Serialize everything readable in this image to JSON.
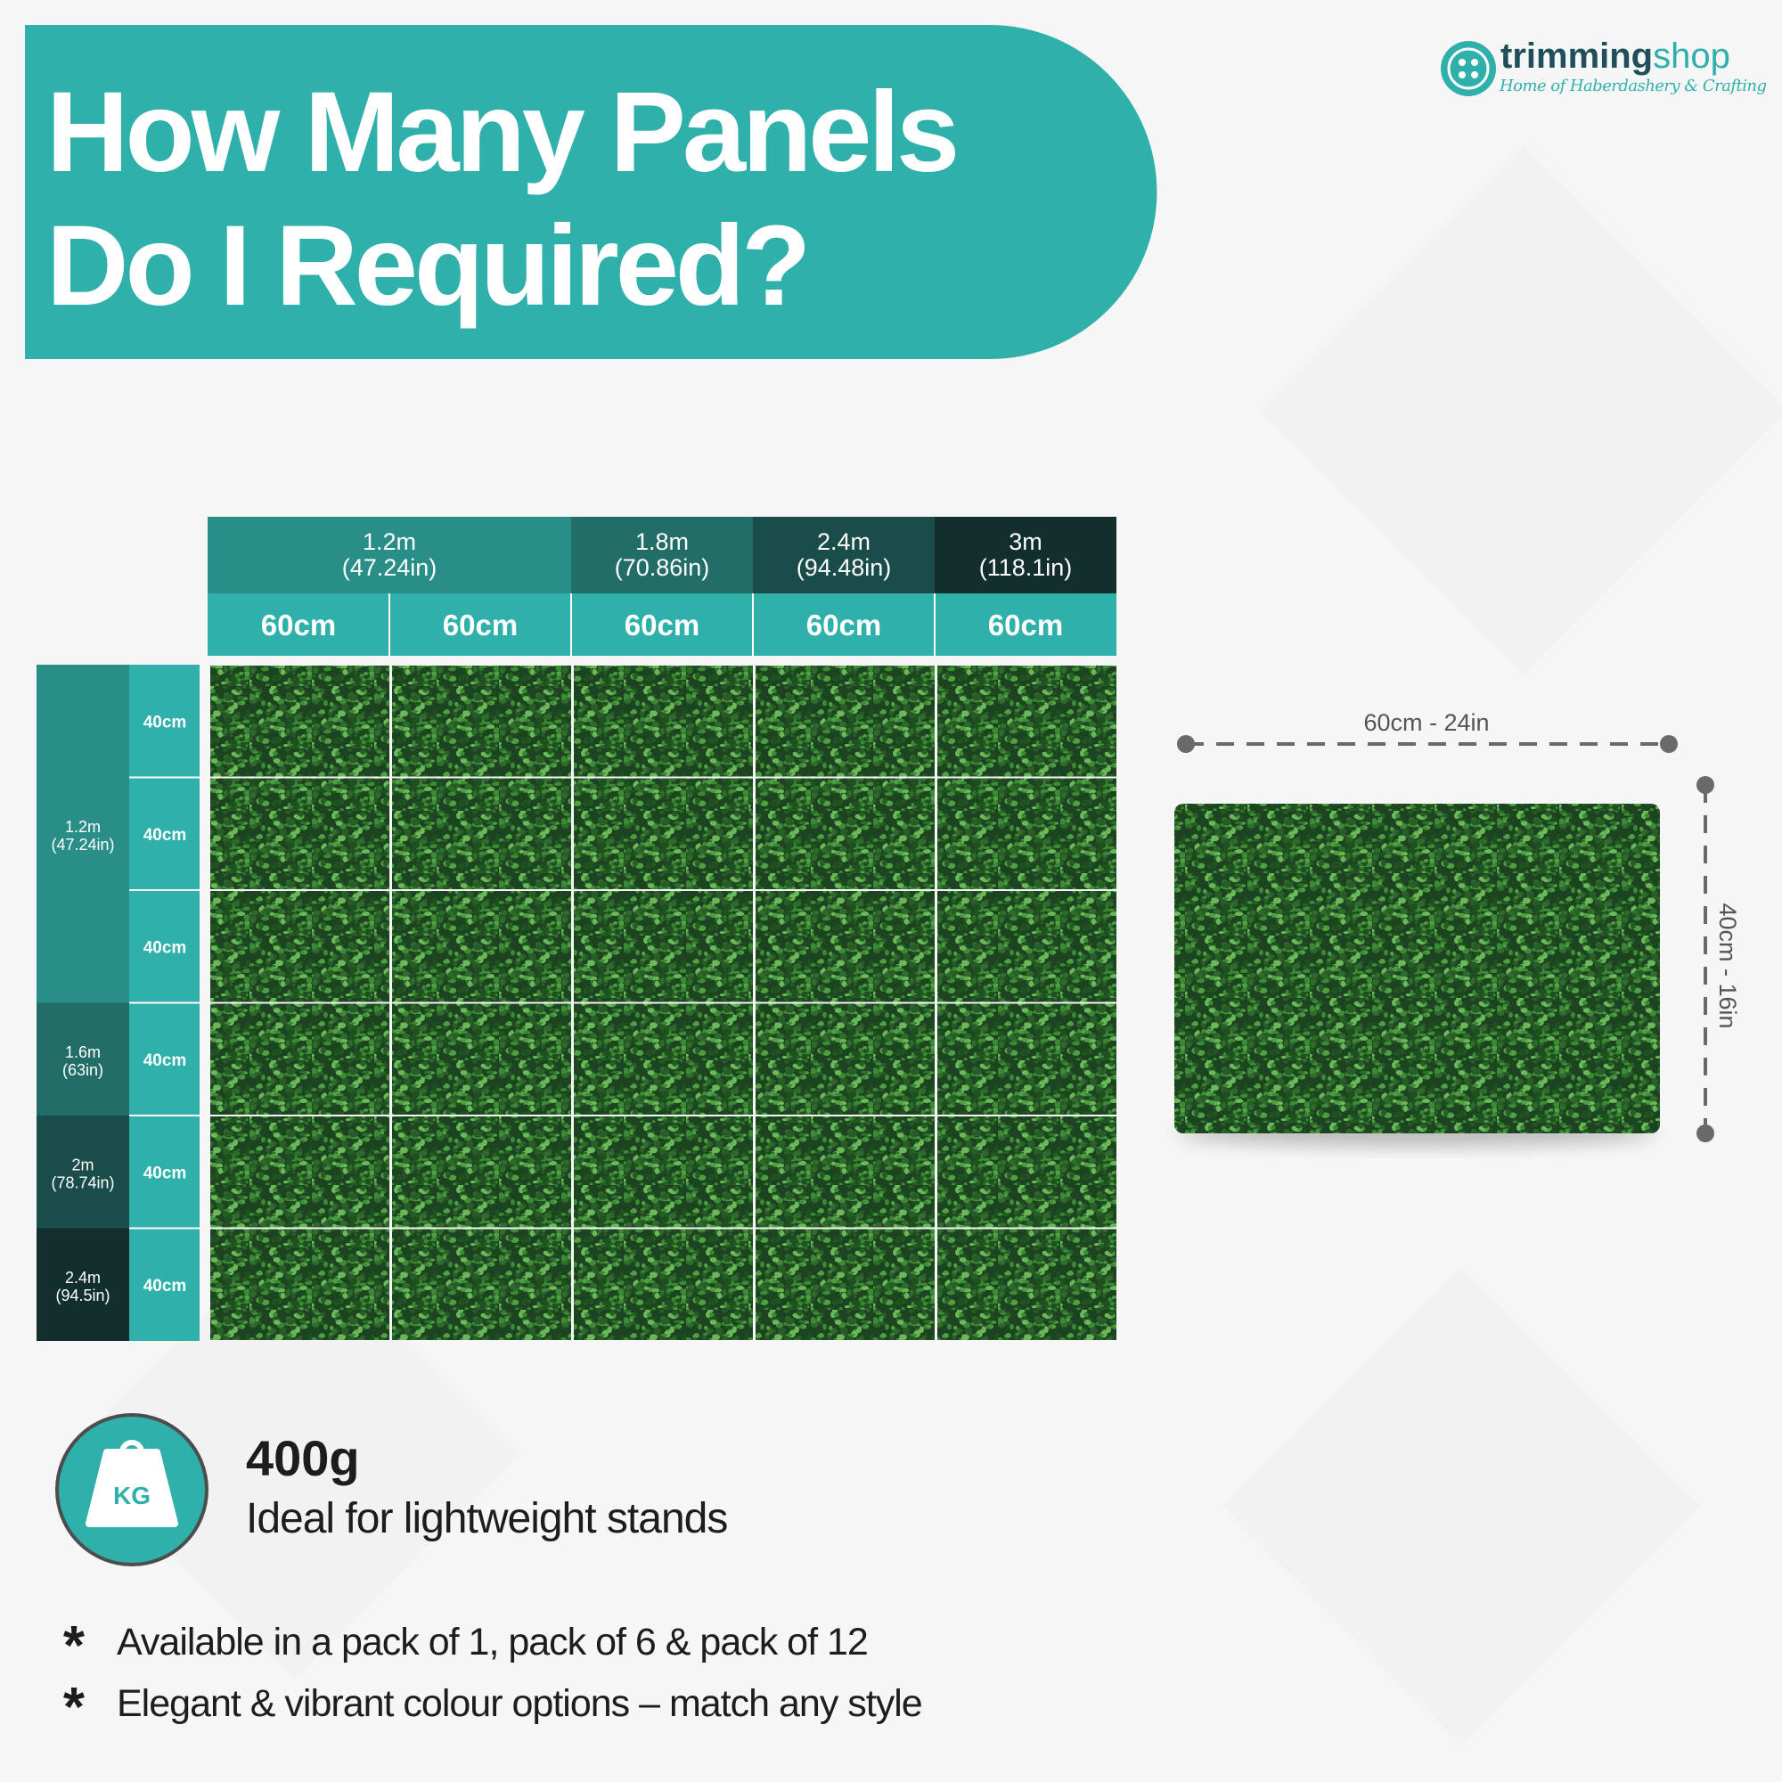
{
  "logo": {
    "brand_bold": "trimming",
    "brand_light": "shop",
    "tagline": "Home of Haberdashery & Crafting"
  },
  "header": {
    "title_lines": [
      "How Many Panels",
      "Do I Required?"
    ]
  },
  "size_chart": {
    "column_groups": [
      {
        "size": "1.2m",
        "imperial": "(47.24in)"
      },
      {
        "size": "1.8m",
        "imperial": "(70.86in)"
      },
      {
        "size": "2.4m",
        "imperial": "(94.48in)"
      },
      {
        "size": "3m",
        "imperial": "(118.1in)"
      }
    ],
    "column_widths": [
      "60cm",
      "60cm",
      "60cm",
      "60cm",
      "60cm"
    ],
    "row_groups": [
      {
        "size": "1.2m",
        "imperial": "(47.24in)"
      },
      {
        "size": "1.6m",
        "imperial": "(63in)"
      },
      {
        "size": "2m",
        "imperial": "(78.74in)"
      },
      {
        "size": "2.4m",
        "imperial": "(94.5in)"
      }
    ],
    "row_heights": [
      "40cm",
      "40cm",
      "40cm",
      "40cm",
      "40cm",
      "40cm"
    ]
  },
  "panel": {
    "width_label": "60cm - 24in",
    "height_label": "40cm - 16in"
  },
  "weight": {
    "icon": "KG",
    "value": "400g",
    "description": "Ideal for lightweight stands"
  },
  "features": [
    "Available in a pack of 1, pack of 6 & pack of 12",
    "Elegant & vibrant colour options – match any style"
  ]
}
